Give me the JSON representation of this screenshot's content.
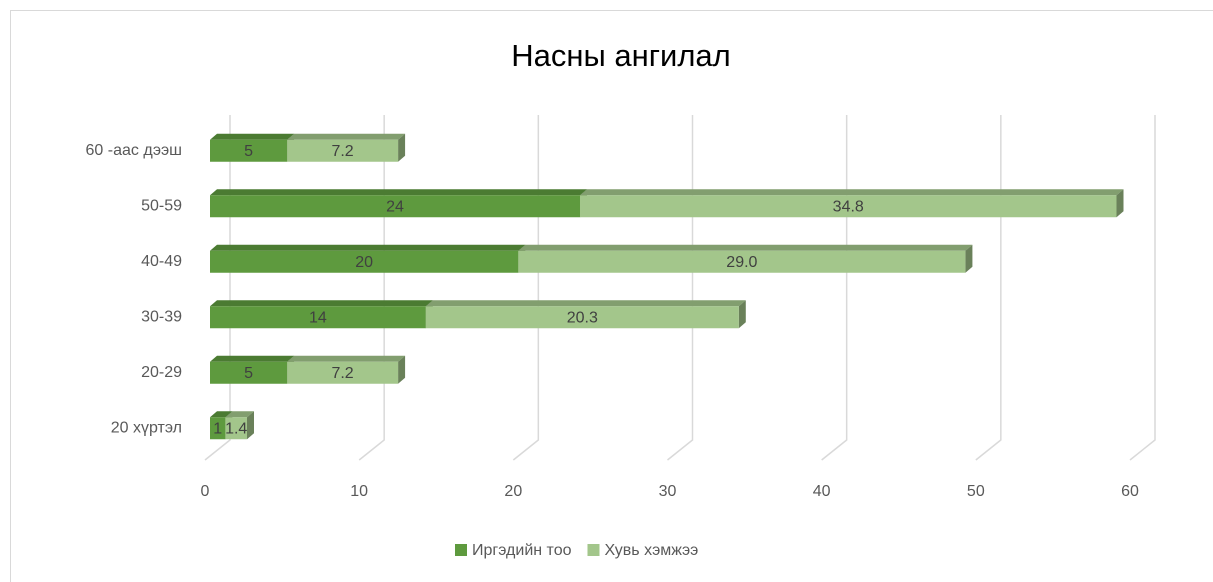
{
  "chart_data": {
    "type": "bar",
    "horizontal": true,
    "stacked": true,
    "title": "Насны ангилал",
    "categories": [
      "20 хүртэл",
      "20-29",
      "30-39",
      "40-49",
      "50-59",
      "60 -аас дээш"
    ],
    "series": [
      {
        "name": "Иргэдийн тоо",
        "color": "#5e9a3e",
        "values": [
          1,
          5,
          14,
          20,
          24,
          5
        ]
      },
      {
        "name": "Хувь хэмжээ",
        "color": "#a3c68b",
        "values": [
          1.4,
          7.2,
          20.3,
          29.0,
          34.8,
          7.2
        ],
        "value_labels": [
          "1.4",
          "7.2",
          "20.3",
          "29.0",
          "34.8",
          "7.2"
        ]
      }
    ],
    "xlim": [
      0,
      60
    ],
    "xticks": [
      0,
      10,
      20,
      30,
      40,
      50,
      60
    ],
    "grid": true,
    "legend": "bottom"
  }
}
